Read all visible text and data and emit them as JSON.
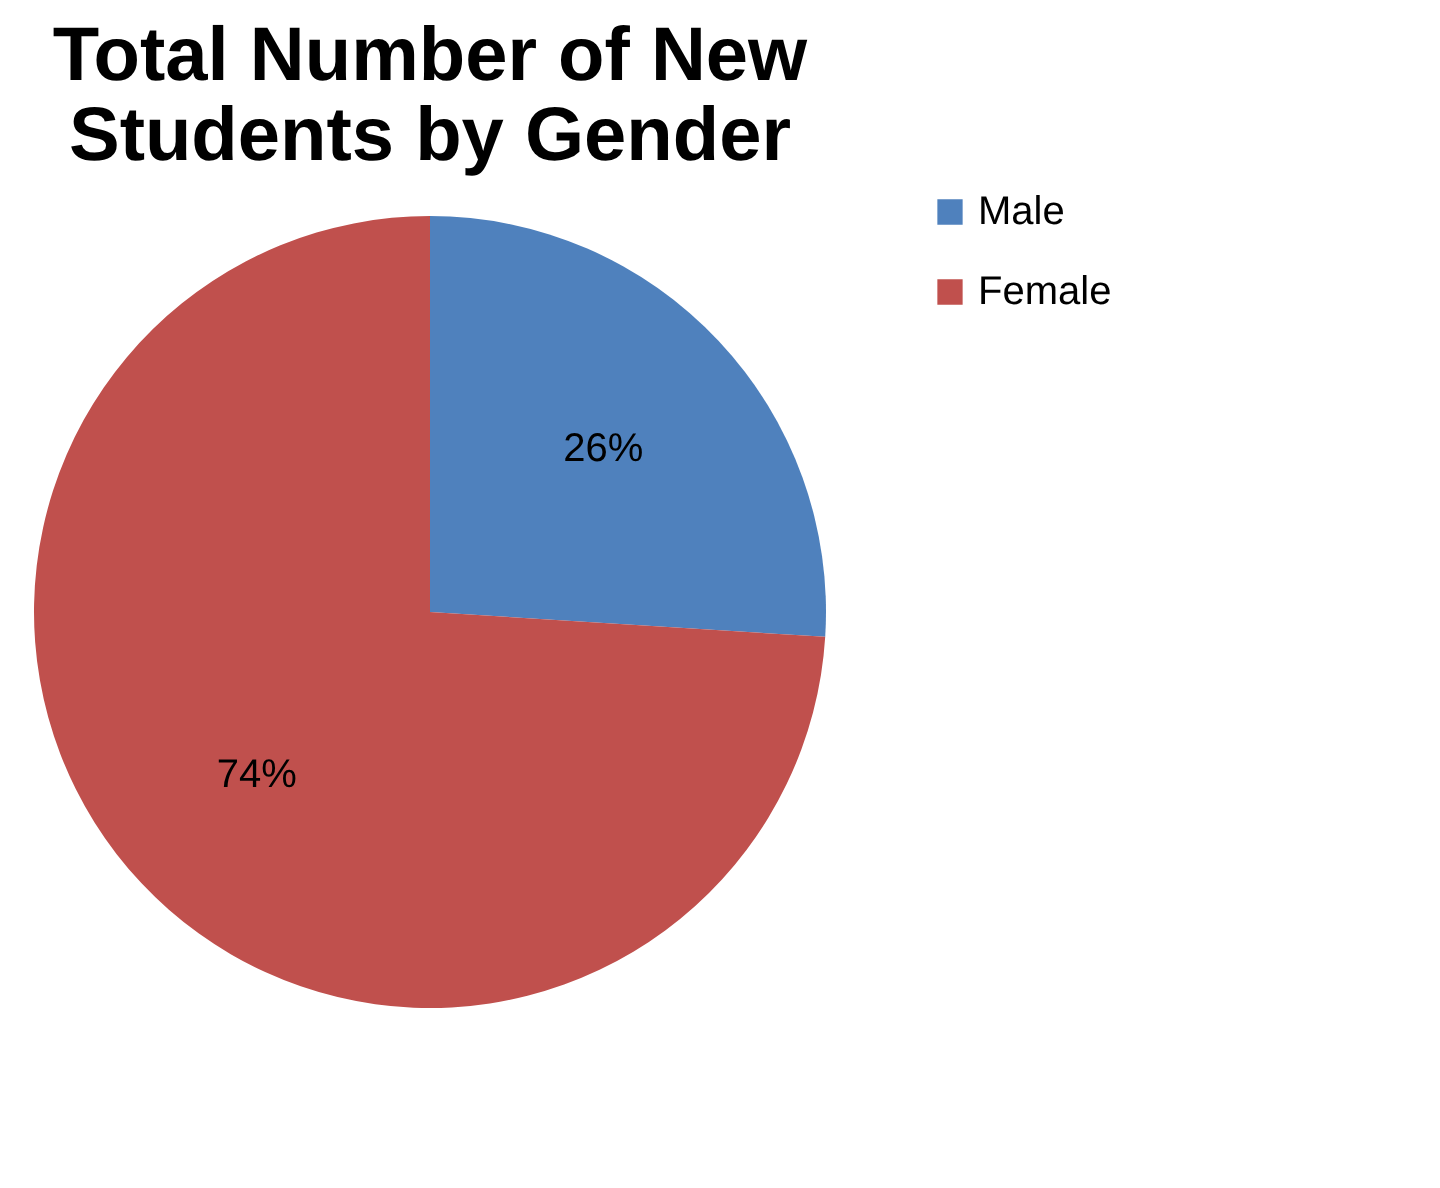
{
  "chart_data": {
    "type": "pie",
    "title": "Total Number of New Students by Gender",
    "categories": [
      "Male",
      "Female"
    ],
    "values": [
      26,
      74
    ],
    "colors": [
      "#4f81bd",
      "#c0504d"
    ],
    "value_labels": [
      "26%",
      "74%"
    ],
    "legend": "right"
  }
}
